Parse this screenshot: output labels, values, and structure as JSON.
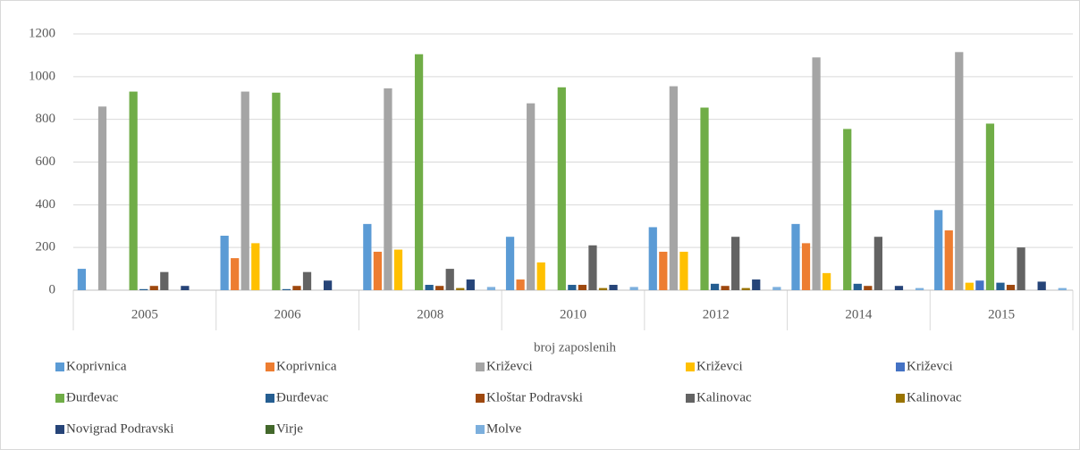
{
  "chart_data": {
    "type": "bar",
    "x_label": "broj zaposlenih",
    "categories": [
      "2005",
      "2006",
      "2008",
      "2010",
      "2012",
      "2014",
      "2015"
    ],
    "series": [
      {
        "name": "Koprivnica",
        "color": "#5b9bd5",
        "values": [
          100,
          255,
          310,
          250,
          295,
          310,
          375
        ]
      },
      {
        "name": "Koprivnica",
        "color": "#ed7d31",
        "values": [
          0,
          150,
          180,
          50,
          180,
          220,
          280
        ]
      },
      {
        "name": "Križevci",
        "color": "#a5a5a5",
        "values": [
          860,
          930,
          945,
          875,
          955,
          1090,
          1115
        ]
      },
      {
        "name": "Križevci",
        "color": "#ffc000",
        "values": [
          0,
          220,
          190,
          130,
          180,
          80,
          35
        ]
      },
      {
        "name": "Križevci",
        "color": "#4472c4",
        "values": [
          0,
          0,
          0,
          0,
          0,
          0,
          45
        ]
      },
      {
        "name": "Đurđevac",
        "color": "#70ad47",
        "values": [
          930,
          925,
          1105,
          950,
          855,
          755,
          780
        ]
      },
      {
        "name": "Đurđevac",
        "color": "#255e91",
        "values": [
          5,
          5,
          25,
          25,
          30,
          30,
          35
        ]
      },
      {
        "name": "Kloštar Podravski",
        "color": "#9e480e",
        "values": [
          20,
          20,
          20,
          25,
          20,
          20,
          25
        ]
      },
      {
        "name": "Kalinovac",
        "color": "#636363",
        "values": [
          85,
          85,
          100,
          210,
          250,
          250,
          200
        ]
      },
      {
        "name": "Kalinovac",
        "color": "#997300",
        "values": [
          0,
          0,
          10,
          10,
          10,
          0,
          0
        ]
      },
      {
        "name": "Novigrad Podravski",
        "color": "#264478",
        "values": [
          20,
          45,
          50,
          25,
          50,
          20,
          40
        ]
      },
      {
        "name": "Virje",
        "color": "#43682b",
        "values": [
          0,
          0,
          0,
          0,
          0,
          0,
          0
        ]
      },
      {
        "name": "Molve",
        "color": "#7cafdd",
        "values": [
          0,
          0,
          15,
          15,
          15,
          10,
          10
        ]
      }
    ],
    "ylim": [
      0,
      1200
    ],
    "yticks": [
      0,
      200,
      400,
      600,
      800,
      1000,
      1200
    ],
    "grid": true,
    "legend": "bottom"
  }
}
